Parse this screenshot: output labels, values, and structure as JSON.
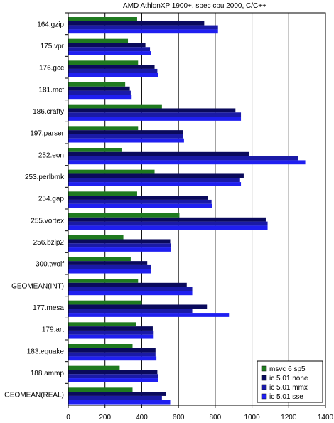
{
  "chart_data": {
    "type": "bar",
    "orientation": "horizontal",
    "title": "AMD AthlonXP 1900+, spec cpu 2000, C/C++",
    "categories": [
      "164.gzip",
      "175.vpr",
      "176.gcc",
      "181.mcf",
      "186.crafty",
      "197.parser",
      "252.eon",
      "253.perlbmk",
      "254.gap",
      "255.vortex",
      "256.bzip2",
      "300.twolf",
      "GEOMEAN(INT)",
      "177.mesa",
      "179.art",
      "183.equake",
      "188.ammp",
      "GEOMEAN(REAL)"
    ],
    "series": [
      {
        "name": "msvc 6 sp5",
        "color": "#1f7a1f",
        "values": [
          375,
          325,
          380,
          310,
          510,
          380,
          290,
          470,
          375,
          605,
          300,
          340,
          380,
          400,
          370,
          350,
          280,
          350
        ]
      },
      {
        "name": "ic 5.01 none",
        "color": "#0a0a5c",
        "values": [
          740,
          420,
          470,
          335,
          910,
          625,
          985,
          955,
          760,
          1075,
          555,
          430,
          645,
          755,
          460,
          475,
          485,
          530
        ]
      },
      {
        "name": "ic 5.01 mmx",
        "color": "#1a1aa6",
        "values": [
          815,
          445,
          485,
          340,
          940,
          625,
          1250,
          935,
          780,
          1085,
          560,
          450,
          675,
          675,
          465,
          475,
          490,
          510
        ]
      },
      {
        "name": "ic 5.01 sse",
        "color": "#1f1ff0",
        "values": [
          815,
          450,
          490,
          345,
          940,
          630,
          1290,
          940,
          785,
          1085,
          560,
          450,
          675,
          875,
          465,
          480,
          490,
          555
        ]
      }
    ],
    "x_ticks": [
      0,
      200,
      400,
      600,
      800,
      1000,
      1200,
      1400
    ],
    "xlim": [
      0,
      1400
    ],
    "grid": "vertical",
    "legend_position": "bottom-right"
  }
}
